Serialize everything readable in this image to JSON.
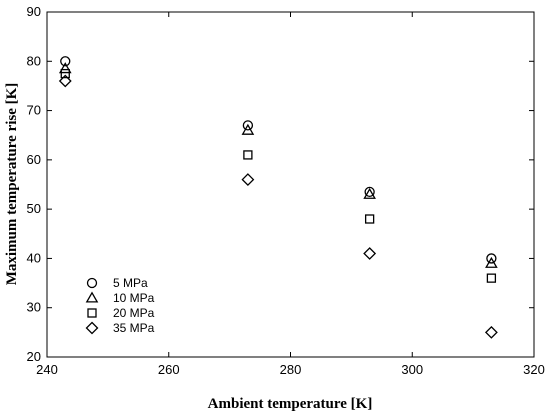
{
  "chart_data": {
    "type": "scatter",
    "title": "",
    "xlabel": "Ambient temperature [K]",
    "ylabel": "Maximum temperature rise [K]",
    "xlim": [
      240,
      320
    ],
    "ylim": [
      20,
      90
    ],
    "xticks": [
      240,
      260,
      280,
      300,
      320
    ],
    "yticks": [
      20,
      30,
      40,
      50,
      60,
      70,
      80,
      90
    ],
    "grid": false,
    "legend_position": "lower-left",
    "series": [
      {
        "name": "5 MPa",
        "marker": "circle",
        "x": [
          243,
          273,
          293,
          313
        ],
        "y": [
          80,
          67,
          53.5,
          40
        ]
      },
      {
        "name": "10 MPa",
        "marker": "triangle",
        "x": [
          243,
          273,
          293,
          313
        ],
        "y": [
          78.5,
          66,
          53,
          39
        ]
      },
      {
        "name": "20 MPa",
        "marker": "square",
        "x": [
          243,
          273,
          293,
          313
        ],
        "y": [
          77.5,
          61,
          48,
          36
        ]
      },
      {
        "name": "35 MPa",
        "marker": "diamond",
        "x": [
          243,
          273,
          293,
          313
        ],
        "y": [
          76,
          56,
          41,
          25
        ]
      }
    ]
  }
}
